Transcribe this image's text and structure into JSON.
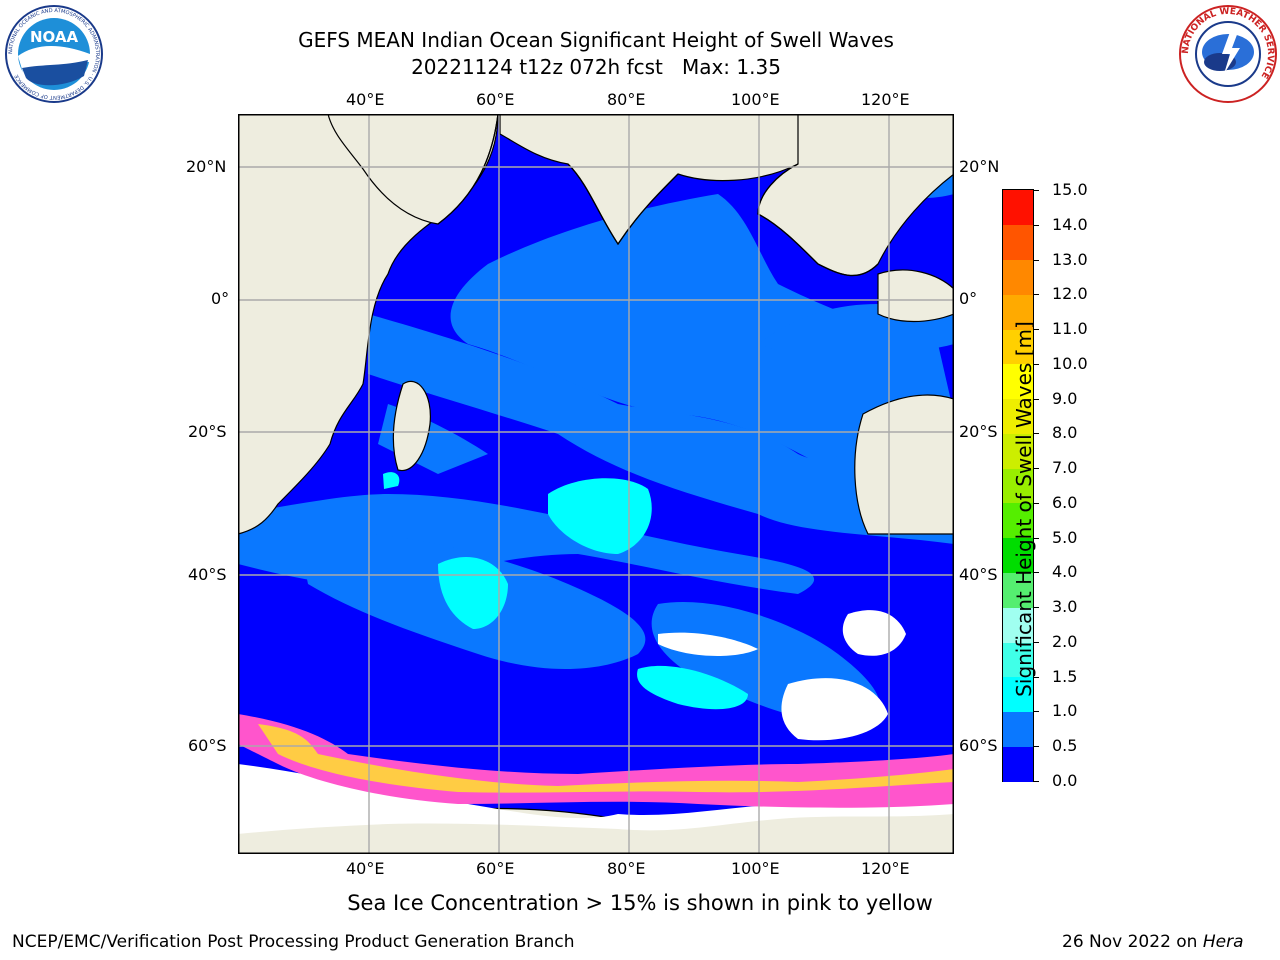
{
  "header": {
    "title_line1": "GEFS MEAN Indian Ocean Significant Height of Swell Waves",
    "title_line2": "20221124 t12z 072h fcst   Max: 1.35"
  },
  "logos": {
    "left_logo_text": "NOAA",
    "left_logo_ring_text": "NATIONAL OCEANIC AND ATMOSPHERIC ADMINISTRATION · U.S. DEPARTMENT OF COMMERCE",
    "right_logo_ring_text": "NATIONAL WEATHER SERVICE"
  },
  "map": {
    "lon_labels": [
      "40°E",
      "60°E",
      "80°E",
      "100°E",
      "120°E"
    ],
    "lat_labels": [
      "20°N",
      "0°",
      "20°S",
      "40°S",
      "60°S"
    ],
    "colors": {
      "land": "#eeeddf",
      "ice": "#ffffff",
      "sea_ice_pink": "#ff55cc",
      "sea_ice_yellow": "#ffcc44",
      "gridline": "#aaaaaa"
    }
  },
  "colorbar": {
    "label": "Significant Height of Swell Waves [m]",
    "ticks": [
      "0.0",
      "0.5",
      "1.0",
      "1.5",
      "2.0",
      "3.0",
      "4.0",
      "5.0",
      "6.0",
      "7.0",
      "8.0",
      "9.0",
      "10.0",
      "11.0",
      "12.0",
      "13.0",
      "14.0",
      "15.0"
    ],
    "colors": [
      "#0000ff",
      "#0a78ff",
      "#00ffff",
      "#40ffe8",
      "#a0fff0",
      "#55ee70",
      "#00dd00",
      "#55ee00",
      "#99ee00",
      "#ccee00",
      "#eeee00",
      "#ffff00",
      "#ffd000",
      "#ffaa00",
      "#ff8800",
      "#ff5500",
      "#ff1100"
    ]
  },
  "footer": {
    "note": "Sea Ice Concentration > 15% is shown in pink to yellow",
    "credit": "NCEP/EMC/Verification Post Processing Product Generation Branch",
    "date_prefix": "26 Nov 2022 on ",
    "date_host": "Hera"
  }
}
